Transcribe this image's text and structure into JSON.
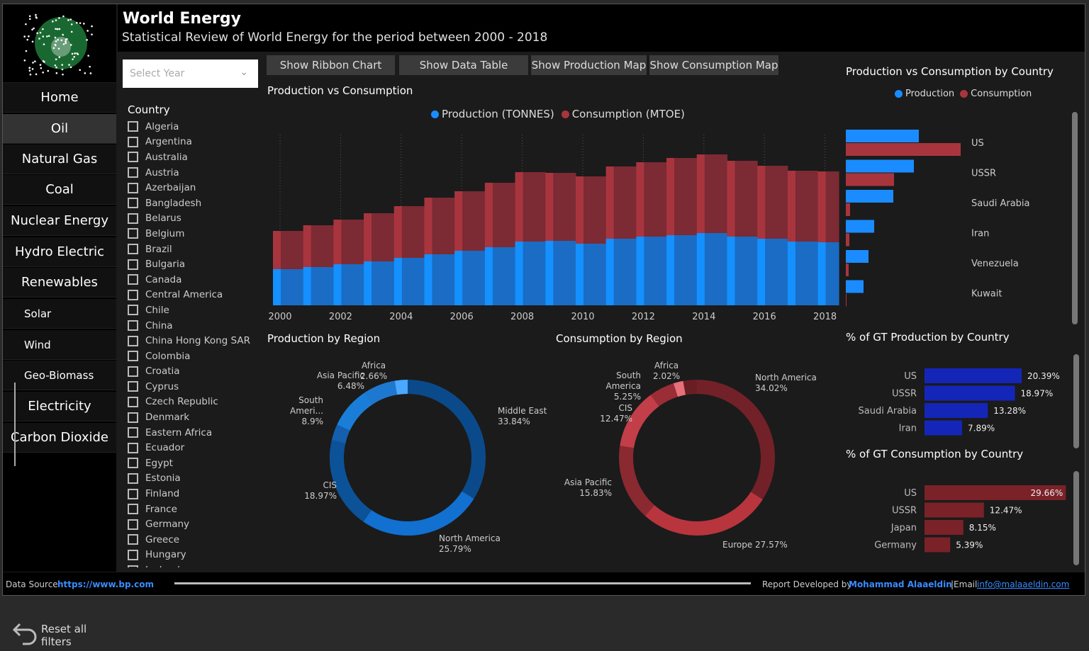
{
  "header": {
    "title": "World Energy",
    "subtitle": "Statistical Review of World Energy for the period between 2000 - 2018"
  },
  "sidebar": {
    "items": [
      {
        "label": "Home"
      },
      {
        "label": "Oil",
        "selected": true
      },
      {
        "label": "Natural Gas"
      },
      {
        "label": "Coal"
      },
      {
        "label": "Nuclear Energy"
      },
      {
        "label": "Hydro Electric"
      },
      {
        "label": "Renewables"
      },
      {
        "label": "Solar"
      },
      {
        "label": "Wind"
      },
      {
        "label": "Geo-Biomass"
      },
      {
        "label": "Electricity"
      },
      {
        "label": "Carbon Dioxide"
      }
    ],
    "reset_label": "Reset all filters"
  },
  "filters": {
    "year_placeholder": "Select Year",
    "country_header": "Country",
    "countries": [
      "Algeria",
      "Argentina",
      "Australia",
      "Austria",
      "Azerbaijan",
      "Bangladesh",
      "Belarus",
      "Belgium",
      "Brazil",
      "Bulgaria",
      "Canada",
      "Central America",
      "Chile",
      "China",
      "China Hong Kong SAR",
      "Colombia",
      "Croatia",
      "Cyprus",
      "Czech Republic",
      "Denmark",
      "Eastern Africa",
      "Ecuador",
      "Egypt",
      "Estonia",
      "Finland",
      "France",
      "Germany",
      "Greece",
      "Hungary",
      "Iceland"
    ]
  },
  "buttons": {
    "ribbon": "Show Ribbon Chart",
    "table": "Show Data Table",
    "prod_map": "Show Production Map",
    "cons_map": "Show Consumption Map"
  },
  "colors": {
    "production": "#1a8cff",
    "consumption": "#a8353e",
    "gt_production": "#1426b8",
    "gt_consumption": "#7a2228"
  },
  "chart_data": [
    {
      "type": "bar",
      "stacked": true,
      "title": "Production vs Consumption",
      "legend": "top",
      "series": [
        {
          "name": "Production (TONNES)",
          "values": [
            51,
            54,
            58,
            62,
            67,
            72,
            77,
            82,
            90,
            91,
            87,
            94,
            97,
            99,
            102,
            97,
            94,
            90,
            89
          ]
        },
        {
          "name": "Consumption (MTOE)",
          "values": [
            54,
            59,
            63,
            68,
            73,
            80,
            84,
            91,
            98,
            96,
            95,
            102,
            105,
            109,
            111,
            107,
            103,
            100,
            100
          ]
        }
      ],
      "categories": [
        "2000",
        "2001",
        "2002",
        "2003",
        "2004",
        "2005",
        "2006",
        "2007",
        "2008",
        "2009",
        "2010",
        "2011",
        "2012",
        "2013",
        "2014",
        "2015",
        "2016",
        "2017",
        "2018"
      ],
      "tick_labels": [
        "2000",
        "2002",
        "2004",
        "2006",
        "2008",
        "2010",
        "2012",
        "2014",
        "2016",
        "2018"
      ]
    },
    {
      "type": "pie",
      "donut": true,
      "title": "Production by Region",
      "slices": [
        {
          "label": "Middle East",
          "value": 33.84,
          "display": "33.84%"
        },
        {
          "label": "North America",
          "value": 25.79,
          "display": "25.79%"
        },
        {
          "label": "CIS",
          "value": 18.97,
          "display": "18.97%"
        },
        {
          "label": "South Ameri...",
          "value": 8.9,
          "display": "8.9%"
        },
        {
          "label": "Asia Pacific",
          "value": 6.48,
          "display": "6.48%"
        },
        {
          "label": "Africa",
          "value": 2.66,
          "display": "2.66%"
        }
      ]
    },
    {
      "type": "pie",
      "donut": true,
      "title": "Consumption by Region",
      "slices": [
        {
          "label": "North America",
          "value": 34.02,
          "display": "34.02%"
        },
        {
          "label": "Europe",
          "value": 27.57,
          "display": "27.57%"
        },
        {
          "label": "Asia Pacific",
          "value": 15.83,
          "display": "15.83%"
        },
        {
          "label": "CIS",
          "value": 12.47,
          "display": "12.47%"
        },
        {
          "label": "South America",
          "value": 5.25,
          "display": "5.25%"
        },
        {
          "label": "Africa",
          "value": 2.02,
          "display": "2.02%"
        }
      ]
    },
    {
      "type": "bar",
      "orientation": "horizontal",
      "title": "Production vs Consumption by Country",
      "legend": "top",
      "categories": [
        "US",
        "USSR",
        "Saudi Arabia",
        "Iran",
        "Venezuela",
        "Kuwait"
      ],
      "series": [
        {
          "name": "Production",
          "values": [
            103,
            96,
            67,
            40,
            32,
            25
          ]
        },
        {
          "name": "Consumption",
          "values": [
            162,
            68,
            6,
            5,
            4,
            1
          ]
        }
      ]
    },
    {
      "type": "bar",
      "orientation": "horizontal",
      "title": "% of GT Production by Country",
      "categories": [
        "US",
        "USSR",
        "Saudi Arabia",
        "Iran"
      ],
      "values": [
        20.39,
        18.97,
        13.28,
        7.89
      ],
      "labels": [
        "20.39%",
        "18.97%",
        "13.28%",
        "7.89%"
      ]
    },
    {
      "type": "bar",
      "orientation": "horizontal",
      "title": "% of GT Consumption by Country",
      "categories": [
        "US",
        "USSR",
        "Japan",
        "Germany"
      ],
      "values": [
        29.66,
        12.47,
        8.15,
        5.39
      ],
      "labels": [
        "29.66%",
        "12.47%",
        "8.15%",
        "5.39%"
      ]
    }
  ],
  "footer": {
    "source_label": "Data Source",
    "source_link": "https://www.bp.com",
    "dev_label": "Report Developed by",
    "dev_name": "Mohammad Alaaeldin",
    "email_label": "|Email",
    "email": "info@malaaeldin.com"
  }
}
